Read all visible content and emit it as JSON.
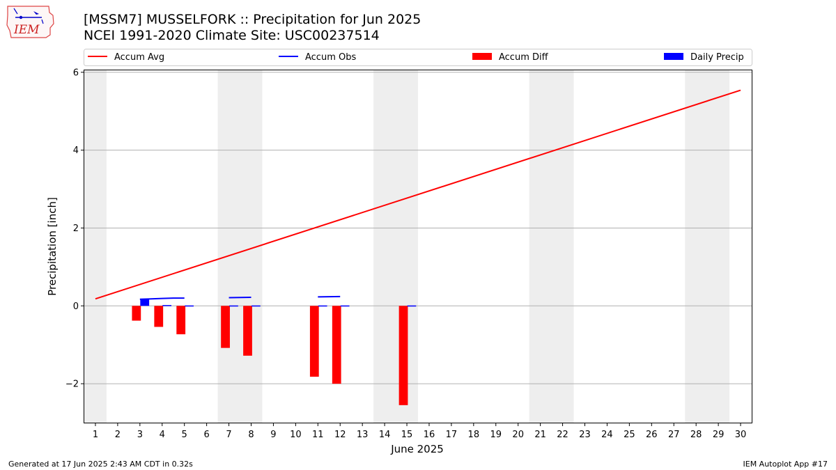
{
  "header": {
    "title_line1": "[MSSM7] MUSSELFORK :: Precipitation for Jun 2025",
    "title_line2": "NCEI 1991-2020 Climate Site: USC00237514",
    "logo_text": "IEM"
  },
  "footer": {
    "generated": "Generated at 17 Jun 2025 2:43 AM CDT in 0.32s",
    "app": "IEM Autoplot App #17"
  },
  "colors": {
    "avg": "#ff0000",
    "obs": "#0000ff",
    "diff": "#ff0000",
    "daily": "#0000ff",
    "weekend": "#eeeeee",
    "grid": "#b0b0b0"
  },
  "chart_data": {
    "type": "bar",
    "xlabel": "June 2025",
    "ylabel": "Precipitation [inch]",
    "xlim": [
      0.5,
      30.5
    ],
    "ylim": [
      -3.0,
      6.05
    ],
    "yticks": [
      -2,
      0,
      2,
      4,
      6
    ],
    "ytick_labels": [
      "−2",
      "0",
      "2",
      "4",
      "6"
    ],
    "x_ticks": [
      1,
      2,
      3,
      4,
      5,
      6,
      7,
      8,
      9,
      10,
      11,
      12,
      13,
      14,
      15,
      16,
      17,
      18,
      19,
      20,
      21,
      22,
      23,
      24,
      25,
      26,
      27,
      28,
      29,
      30
    ],
    "grid": "horizontal",
    "legend_position": "top",
    "weekend_spans": [
      [
        0.5,
        1.5
      ],
      [
        6.5,
        8.5
      ],
      [
        13.5,
        15.5
      ],
      [
        20.5,
        22.5
      ],
      [
        27.5,
        29.5
      ]
    ],
    "series": [
      {
        "name": "Accum Avg",
        "type": "line",
        "x": [
          1,
          30
        ],
        "values": [
          0.18,
          5.54
        ]
      },
      {
        "name": "Accum Obs",
        "type": "line",
        "segments": [
          {
            "x": [
              3.0,
              3.5,
              4.0,
              4.5,
              5.0
            ],
            "values": [
              0.17,
              0.18,
              0.19,
              0.2,
              0.2
            ]
          },
          {
            "x": [
              7.0,
              8.0
            ],
            "values": [
              0.21,
              0.22
            ]
          },
          {
            "x": [
              11.0,
              12.0
            ],
            "values": [
              0.23,
              0.24
            ]
          }
        ]
      },
      {
        "name": "Accum Diff",
        "type": "bar",
        "x": [
          3,
          4,
          5,
          7,
          8,
          11,
          12,
          15
        ],
        "values": [
          -0.38,
          -0.54,
          -0.73,
          -1.08,
          -1.28,
          -1.82,
          -2.0,
          -2.55
        ]
      },
      {
        "name": "Daily Precip",
        "type": "bar",
        "x": [
          3,
          4,
          5,
          7,
          8,
          11,
          12,
          15
        ],
        "values": [
          0.17,
          0.02,
          0.01,
          0.01,
          0.01,
          0.01,
          0.01,
          0.01
        ]
      }
    ]
  }
}
